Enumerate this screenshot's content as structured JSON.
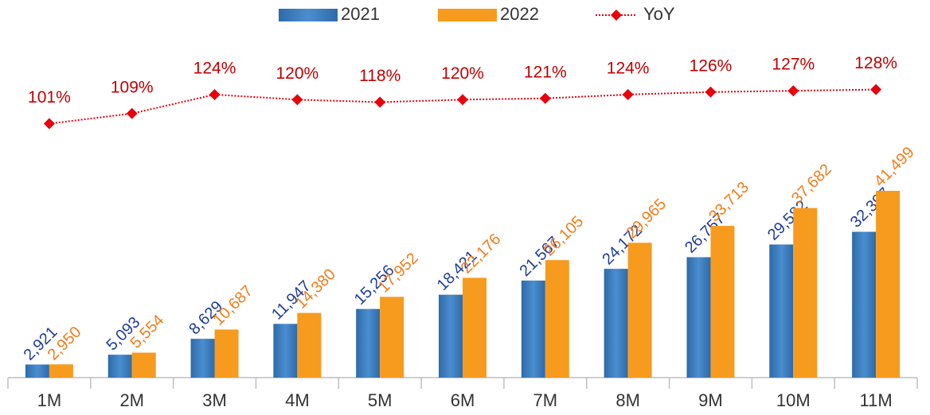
{
  "chart_data": {
    "type": "bar",
    "categories": [
      "1M",
      "2M",
      "3M",
      "4M",
      "5M",
      "6M",
      "7M",
      "8M",
      "9M",
      "10M",
      "11M"
    ],
    "series": [
      {
        "name": "2021",
        "type": "bar",
        "color": "#3b7dc0",
        "label_color": "#1f3d99",
        "values": [
          2921,
          5093,
          8629,
          11947,
          15256,
          18421,
          21567,
          24172,
          26757,
          29582,
          32397
        ],
        "value_labels": [
          "2,921",
          "5,093",
          "8,629",
          "11,947",
          "15,256",
          "18,421",
          "21,567",
          "24,172",
          "26,757",
          "29,582",
          "32,397"
        ]
      },
      {
        "name": "2022",
        "type": "bar",
        "color": "#f79b1e",
        "label_color": "#f07d1a",
        "values": [
          2950,
          5554,
          10687,
          14380,
          17952,
          22176,
          26105,
          29965,
          33713,
          37682,
          41499
        ],
        "value_labels": [
          "2,950",
          "5,554",
          "10,687",
          "14,380",
          "17,952",
          "22,176",
          "26,105",
          "29,965",
          "33,713",
          "37,682",
          "41,499"
        ]
      },
      {
        "name": "YoY",
        "type": "line",
        "axis": "y2",
        "color": "#e8000b",
        "label_color": "#c00000",
        "values": [
          101,
          109,
          124,
          120,
          118,
          120,
          121,
          124,
          126,
          127,
          128
        ],
        "value_labels": [
          "101%",
          "109%",
          "124%",
          "120%",
          "118%",
          "120%",
          "121%",
          "124%",
          "126%",
          "127%",
          "128%"
        ]
      }
    ],
    "ylim": [
      0,
      80000
    ],
    "y2lim": [
      -100,
      185
    ],
    "legend": "top"
  }
}
